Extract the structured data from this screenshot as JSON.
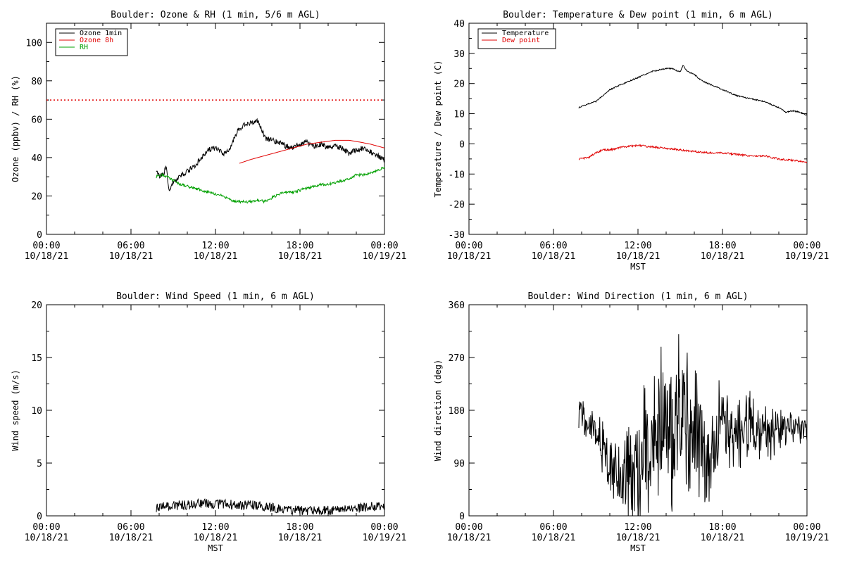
{
  "colors": {
    "black": "#000000",
    "red": "#e00000",
    "green": "#00a000"
  },
  "chart_data": [
    {
      "type": "line",
      "title": "Boulder: Ozone & RH (1 min, 5/6 m AGL)",
      "xlabel": "",
      "ylabel": "Ozone (ppbv) / RH (%)",
      "xlim": [
        0,
        24
      ],
      "ylim": [
        0,
        110
      ],
      "yticks": [
        0,
        20,
        40,
        60,
        80,
        100
      ],
      "xticks": [
        {
          "x": 0,
          "time": "00:00",
          "date": "10/18/21"
        },
        {
          "x": 6,
          "time": "06:00",
          "date": "10/18/21"
        },
        {
          "x": 12,
          "time": "12:00",
          "date": "10/18/21"
        },
        {
          "x": 18,
          "time": "18:00",
          "date": "10/18/21"
        },
        {
          "x": 24,
          "time": "00:00",
          "date": "10/19/21"
        }
      ],
      "hline": {
        "y": 70,
        "color": "#e00000",
        "style": "dotted"
      },
      "legend_position": "top-left",
      "series": [
        {
          "name": "Ozone 1min",
          "color": "#000000",
          "noise": 1.4,
          "seed": 11,
          "x": [
            7.8,
            8.0,
            8.3,
            8.5,
            8.7,
            9.0,
            9.5,
            10.0,
            10.5,
            11.0,
            11.5,
            12.0,
            12.5,
            13.0,
            13.3,
            13.6,
            14.0,
            14.5,
            15.0,
            15.3,
            15.6,
            16.0,
            16.5,
            17.0,
            17.5,
            18.0,
            18.5,
            19.0,
            19.5,
            20.0,
            20.5,
            21.0,
            21.5,
            22.0,
            22.5,
            23.0,
            23.5,
            24.0
          ],
          "y": [
            34,
            30,
            31,
            36,
            22,
            27,
            30,
            33,
            35,
            40,
            44,
            45,
            42,
            44,
            50,
            54,
            57,
            58,
            59,
            54,
            50,
            49,
            48,
            46,
            45,
            47,
            48,
            46,
            47,
            45,
            46,
            45,
            42,
            44,
            45,
            43,
            41,
            39
          ]
        },
        {
          "name": "Ozone 8h",
          "color": "#e00000",
          "noise": 0,
          "seed": 0,
          "x": [
            13.7,
            14.5,
            15.5,
            16.5,
            17.5,
            18.5,
            19.5,
            20.5,
            21.5,
            22.3,
            23.0,
            24.0
          ],
          "y": [
            37,
            39,
            41,
            43,
            45,
            47,
            48,
            49,
            49,
            48,
            47,
            45
          ]
        },
        {
          "name": "RH",
          "color": "#00a000",
          "noise": 0.7,
          "seed": 23,
          "x": [
            7.8,
            8.2,
            8.6,
            9.0,
            9.5,
            10.0,
            10.5,
            11.0,
            11.5,
            12.0,
            12.5,
            13.0,
            13.5,
            14.0,
            14.5,
            15.0,
            15.5,
            16.0,
            16.5,
            17.0,
            17.5,
            18.0,
            18.5,
            19.0,
            19.5,
            20.0,
            20.5,
            21.0,
            21.5,
            22.0,
            22.5,
            23.0,
            23.5,
            24.0
          ],
          "y": [
            30,
            31,
            30,
            28,
            26,
            25,
            24,
            23,
            22,
            21,
            20,
            18,
            17,
            17,
            17,
            18,
            17,
            19,
            21,
            22,
            22,
            23,
            24,
            25,
            26,
            26,
            27,
            28,
            29,
            31,
            31,
            32,
            33,
            35
          ]
        }
      ]
    },
    {
      "type": "line",
      "title": "Boulder: Temperature & Dew point (1 min, 6 m AGL)",
      "xlabel": "MST",
      "ylabel": "Temperature / Dew point (C)",
      "xlim": [
        0,
        24
      ],
      "ylim": [
        -30,
        40
      ],
      "yticks": [
        -30,
        -20,
        -10,
        0,
        10,
        20,
        30,
        40
      ],
      "xticks": [
        {
          "x": 0,
          "time": "00:00",
          "date": "10/18/21"
        },
        {
          "x": 6,
          "time": "06:00",
          "date": "10/18/21"
        },
        {
          "x": 12,
          "time": "12:00",
          "date": "10/18/21"
        },
        {
          "x": 18,
          "time": "18:00",
          "date": "10/18/21"
        },
        {
          "x": 24,
          "time": "00:00",
          "date": "10/19/21"
        }
      ],
      "legend_position": "top-left",
      "series": [
        {
          "name": "Temperature",
          "color": "#000000",
          "noise": 0.2,
          "seed": 31,
          "x": [
            7.8,
            8.3,
            9.0,
            9.5,
            10.0,
            10.5,
            11.0,
            11.5,
            12.0,
            12.5,
            13.0,
            13.5,
            14.0,
            14.5,
            14.8,
            15.0,
            15.2,
            15.5,
            16.0,
            16.5,
            17.0,
            17.5,
            18.0,
            18.5,
            19.0,
            19.5,
            20.0,
            20.5,
            21.0,
            21.5,
            22.0,
            22.5,
            23.0,
            23.5,
            24.0
          ],
          "y": [
            12,
            13,
            14,
            16,
            18,
            19,
            20,
            21,
            22,
            23,
            24,
            24.5,
            25,
            25,
            24,
            24,
            26,
            24,
            23,
            21,
            20,
            19,
            18,
            17,
            16,
            15.5,
            15,
            14.5,
            14,
            13,
            12,
            10.5,
            11,
            10.5,
            9.5
          ]
        },
        {
          "name": "Dew point",
          "color": "#e00000",
          "noise": 0.3,
          "seed": 47,
          "x": [
            7.8,
            8.5,
            9.0,
            9.5,
            10.0,
            10.5,
            11.0,
            12.0,
            13.0,
            14.0,
            15.0,
            16.0,
            17.0,
            18.0,
            19.0,
            20.0,
            21.0,
            22.0,
            23.0,
            24.0
          ],
          "y": [
            -5,
            -4.5,
            -3,
            -2,
            -2,
            -1.5,
            -1,
            -0.5,
            -1,
            -1.5,
            -2,
            -2.5,
            -3,
            -3,
            -3.5,
            -4,
            -4,
            -5,
            -5.5,
            -6
          ]
        }
      ]
    },
    {
      "type": "line",
      "title": "Boulder: Wind Speed (1 min, 6 m AGL)",
      "xlabel": "MST",
      "ylabel": "Wind speed (m/s)",
      "xlim": [
        0,
        24
      ],
      "ylim": [
        0,
        20
      ],
      "yticks": [
        0,
        5,
        10,
        15,
        20
      ],
      "xticks": [
        {
          "x": 0,
          "time": "00:00",
          "date": "10/18/21"
        },
        {
          "x": 6,
          "time": "06:00",
          "date": "10/18/21"
        },
        {
          "x": 12,
          "time": "12:00",
          "date": "10/18/21"
        },
        {
          "x": 18,
          "time": "18:00",
          "date": "10/18/21"
        },
        {
          "x": 24,
          "time": "00:00",
          "date": "10/19/21"
        }
      ],
      "series": [
        {
          "name": "",
          "color": "#000000",
          "noise": 0.45,
          "seed": 59,
          "x": [
            7.8,
            9.0,
            10.0,
            11.0,
            12.0,
            13.0,
            14.0,
            15.0,
            16.0,
            17.0,
            18.0,
            19.0,
            20.0,
            21.0,
            22.0,
            23.0,
            24.0
          ],
          "y": [
            0.8,
            1.0,
            1.0,
            1.2,
            1.1,
            1.1,
            1.0,
            1.0,
            0.8,
            0.6,
            0.5,
            0.5,
            0.5,
            0.6,
            0.7,
            0.9,
            0.9
          ]
        }
      ]
    },
    {
      "type": "line",
      "title": "Boulder: Wind Direction (1 min, 6 m AGL)",
      "xlabel": "MST",
      "ylabel": "Wind direction (deg)",
      "xlim": [
        0,
        24
      ],
      "ylim": [
        0,
        360
      ],
      "yticks": [
        0,
        90,
        180,
        270,
        360
      ],
      "xticks": [
        {
          "x": 0,
          "time": "00:00",
          "date": "10/18/21"
        },
        {
          "x": 6,
          "time": "06:00",
          "date": "10/18/21"
        },
        {
          "x": 12,
          "time": "12:00",
          "date": "10/18/21"
        },
        {
          "x": 18,
          "time": "18:00",
          "date": "10/18/21"
        },
        {
          "x": 24,
          "time": "00:00",
          "date": "10/19/21"
        }
      ],
      "series": [
        {
          "name": "",
          "color": "#000000",
          "noise": 0,
          "seed": 71,
          "x": [
            7.8,
            8.3,
            9.0,
            9.5,
            10.0,
            10.5,
            11.0,
            11.5,
            12.0,
            12.5,
            13.0,
            13.5,
            14.0,
            14.5,
            15.0,
            15.5,
            16.0,
            16.5,
            17.0,
            17.5,
            18.0,
            18.5,
            19.0,
            19.5,
            20.0,
            20.5,
            21.0,
            21.5,
            22.0,
            22.5,
            23.0,
            23.5,
            24.0
          ],
          "y": [
            180,
            165,
            140,
            120,
            95,
            70,
            60,
            75,
            90,
            110,
            130,
            150,
            170,
            160,
            175,
            150,
            140,
            130,
            120,
            140,
            160,
            150,
            140,
            150,
            160,
            150,
            145,
            140,
            150,
            155,
            150,
            145,
            145
          ],
          "spread": [
            30,
            30,
            35,
            50,
            60,
            60,
            70,
            90,
            110,
            120,
            140,
            150,
            160,
            170,
            150,
            130,
            110,
            110,
            100,
            90,
            80,
            70,
            70,
            60,
            60,
            60,
            50,
            45,
            40,
            35,
            30,
            30,
            30
          ]
        }
      ]
    }
  ]
}
